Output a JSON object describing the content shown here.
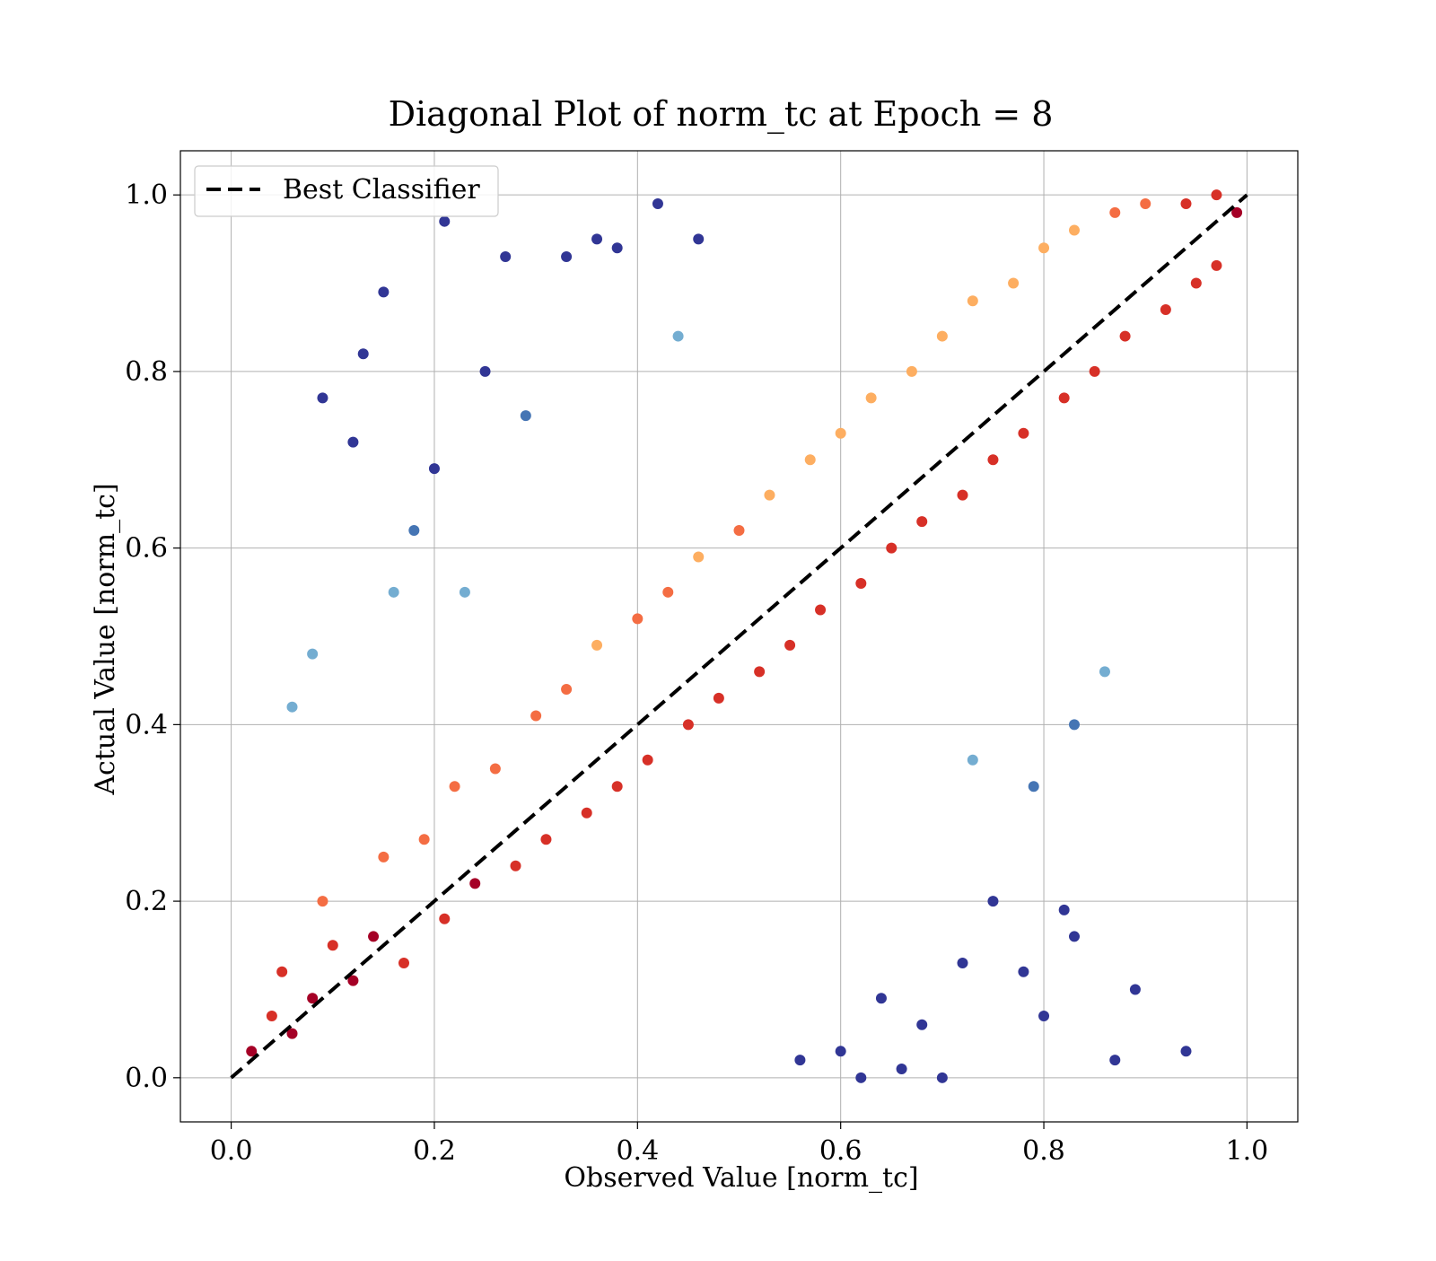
{
  "chart_data": {
    "type": "scatter",
    "title": "Diagonal Plot of norm_tc at Epoch = 8",
    "xlabel": "Observed Value [norm_tc]",
    "ylabel": "Actual Value [norm_tc]",
    "xlim": [
      -0.05,
      1.05
    ],
    "ylim": [
      -0.05,
      1.05
    ],
    "xticks": [
      "0.0",
      "0.2",
      "0.4",
      "0.6",
      "0.8",
      "1.0"
    ],
    "yticks": [
      "0.0",
      "0.2",
      "0.4",
      "0.6",
      "0.8",
      "1.0"
    ],
    "grid": true,
    "legend": {
      "position": "top-left",
      "entries": [
        "Best Classifier"
      ]
    },
    "reference_line": {
      "name": "Best Classifier",
      "style": "dashed",
      "color": "#000000",
      "x": [
        0.0,
        1.0
      ],
      "y": [
        0.0,
        1.0
      ]
    },
    "colormap": [
      "#313695",
      "#4575b4",
      "#74add1",
      "#abd9e9",
      "#e0f3f8",
      "#ffffbf",
      "#fee090",
      "#fdae61",
      "#f46d43",
      "#d73027",
      "#a50026"
    ],
    "points": [
      [
        0.02,
        0.03
      ],
      [
        0.04,
        0.07
      ],
      [
        0.06,
        0.05
      ],
      [
        0.05,
        0.12
      ],
      [
        0.08,
        0.09
      ],
      [
        0.1,
        0.15
      ],
      [
        0.12,
        0.11
      ],
      [
        0.09,
        0.2
      ],
      [
        0.14,
        0.16
      ],
      [
        0.15,
        0.25
      ],
      [
        0.17,
        0.13
      ],
      [
        0.19,
        0.27
      ],
      [
        0.21,
        0.18
      ],
      [
        0.22,
        0.33
      ],
      [
        0.24,
        0.22
      ],
      [
        0.26,
        0.35
      ],
      [
        0.28,
        0.24
      ],
      [
        0.3,
        0.41
      ],
      [
        0.31,
        0.27
      ],
      [
        0.33,
        0.44
      ],
      [
        0.35,
        0.3
      ],
      [
        0.36,
        0.49
      ],
      [
        0.38,
        0.33
      ],
      [
        0.4,
        0.52
      ],
      [
        0.41,
        0.36
      ],
      [
        0.43,
        0.55
      ],
      [
        0.45,
        0.4
      ],
      [
        0.46,
        0.59
      ],
      [
        0.48,
        0.43
      ],
      [
        0.5,
        0.62
      ],
      [
        0.52,
        0.46
      ],
      [
        0.53,
        0.66
      ],
      [
        0.55,
        0.49
      ],
      [
        0.57,
        0.7
      ],
      [
        0.58,
        0.53
      ],
      [
        0.6,
        0.73
      ],
      [
        0.62,
        0.56
      ],
      [
        0.63,
        0.77
      ],
      [
        0.65,
        0.6
      ],
      [
        0.67,
        0.8
      ],
      [
        0.68,
        0.63
      ],
      [
        0.7,
        0.84
      ],
      [
        0.72,
        0.66
      ],
      [
        0.73,
        0.88
      ],
      [
        0.75,
        0.7
      ],
      [
        0.77,
        0.9
      ],
      [
        0.78,
        0.73
      ],
      [
        0.8,
        0.94
      ],
      [
        0.82,
        0.77
      ],
      [
        0.83,
        0.96
      ],
      [
        0.85,
        0.8
      ],
      [
        0.87,
        0.98
      ],
      [
        0.88,
        0.84
      ],
      [
        0.9,
        0.99
      ],
      [
        0.92,
        0.87
      ],
      [
        0.94,
        0.99
      ],
      [
        0.95,
        0.9
      ],
      [
        0.97,
        1.0
      ],
      [
        0.97,
        0.92
      ],
      [
        0.99,
        0.98
      ],
      [
        0.15,
        0.89
      ],
      [
        0.21,
        0.97
      ],
      [
        0.09,
        0.77
      ],
      [
        0.12,
        0.72
      ],
      [
        0.18,
        0.62
      ],
      [
        0.27,
        0.93
      ],
      [
        0.33,
        0.93
      ],
      [
        0.36,
        0.95
      ],
      [
        0.42,
        0.99
      ],
      [
        0.46,
        0.95
      ],
      [
        0.29,
        0.75
      ],
      [
        0.25,
        0.8
      ],
      [
        0.44,
        0.84
      ],
      [
        0.23,
        0.55
      ],
      [
        0.06,
        0.42
      ],
      [
        0.08,
        0.48
      ],
      [
        0.16,
        0.55
      ],
      [
        0.2,
        0.69
      ],
      [
        0.13,
        0.82
      ],
      [
        0.38,
        0.94
      ],
      [
        0.87,
        0.02
      ],
      [
        0.89,
        0.1
      ],
      [
        0.94,
        0.03
      ],
      [
        0.82,
        0.19
      ],
      [
        0.83,
        0.16
      ],
      [
        0.78,
        0.12
      ],
      [
        0.8,
        0.07
      ],
      [
        0.75,
        0.2
      ],
      [
        0.7,
        0.0
      ],
      [
        0.72,
        0.13
      ],
      [
        0.86,
        0.46
      ],
      [
        0.83,
        0.4
      ],
      [
        0.79,
        0.33
      ],
      [
        0.73,
        0.36
      ],
      [
        0.62,
        0.0
      ],
      [
        0.66,
        0.01
      ],
      [
        0.68,
        0.06
      ],
      [
        0.64,
        0.09
      ],
      [
        0.6,
        0.03
      ],
      [
        0.56,
        0.02
      ]
    ]
  }
}
